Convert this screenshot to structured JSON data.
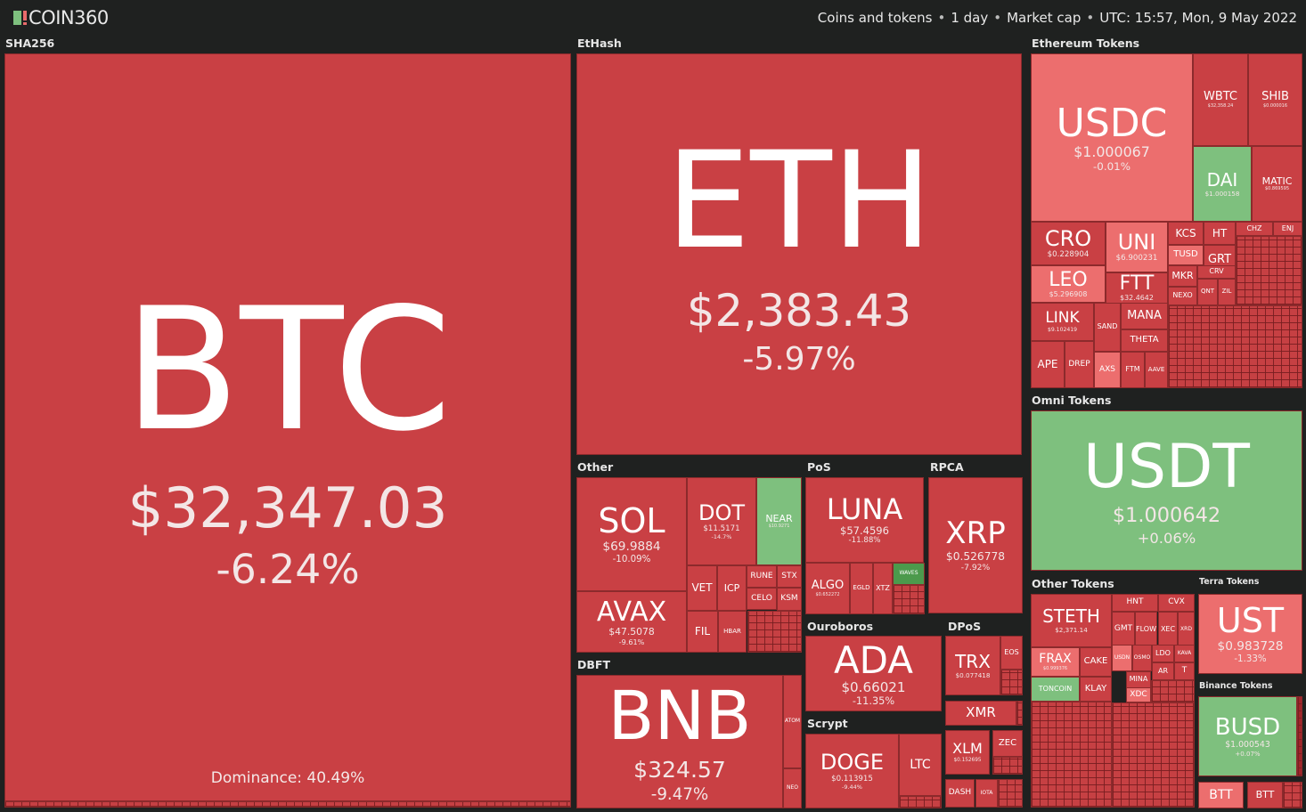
{
  "header": {
    "logo": "COIN360",
    "filters": [
      "Coins and tokens",
      "1 day",
      "Market cap",
      "UTC: 15:57, Mon, 9 May 2022"
    ]
  },
  "colors": {
    "red": "#c94044",
    "light_red": "#ec6e6e",
    "green": "#7ec07e",
    "dark_green": "#4c9a4c",
    "background": "#1f2120"
  },
  "groups": [
    "SHA256",
    "EtHash",
    "Ethereum Tokens",
    "Omni Tokens",
    "Other",
    "PoS",
    "RPCA",
    "Ouroboros",
    "DPoS",
    "DBFT",
    "Scrypt",
    "Other Tokens",
    "Terra Tokens",
    "Binance Tokens"
  ],
  "dominance": "Dominance: 40.49%",
  "tiles": [
    {
      "sym": "BTC",
      "price": "$32,347.03",
      "change": "-6.24%",
      "color": "red"
    },
    {
      "sym": "ETH",
      "price": "$2,383.43",
      "change": "-5.97%",
      "color": "red"
    },
    {
      "sym": "USDC",
      "price": "$1.000067",
      "change": "-0.01%",
      "color": "light_red"
    },
    {
      "sym": "WBTC",
      "price": "$32,358.24",
      "change": "",
      "color": "red"
    },
    {
      "sym": "SHIB",
      "price": "$0.000016",
      "change": "",
      "color": "red"
    },
    {
      "sym": "DAI",
      "price": "$1.000158",
      "change": "",
      "color": "green"
    },
    {
      "sym": "MATIC",
      "price": "$0.869595",
      "change": "",
      "color": "red"
    },
    {
      "sym": "CRO",
      "price": "$0.228904",
      "change": "",
      "color": "red"
    },
    {
      "sym": "UNI",
      "price": "$6.900231",
      "change": "",
      "color": "light_red"
    },
    {
      "sym": "LEO",
      "price": "$5.296908",
      "change": "",
      "color": "light_red"
    },
    {
      "sym": "FTT",
      "price": "$32.4642",
      "change": "",
      "color": "red"
    },
    {
      "sym": "LINK",
      "price": "$9.102419",
      "change": "",
      "color": "red"
    },
    {
      "sym": "APE",
      "price": "",
      "change": "",
      "color": "red"
    },
    {
      "sym": "DREP",
      "price": "",
      "change": "",
      "color": "red"
    },
    {
      "sym": "SAND",
      "price": "",
      "change": "",
      "color": "red"
    },
    {
      "sym": "MANA",
      "price": "",
      "change": "",
      "color": "red"
    },
    {
      "sym": "THETA",
      "price": "",
      "change": "",
      "color": "red"
    },
    {
      "sym": "AXS",
      "price": "",
      "change": "",
      "color": "light_red"
    },
    {
      "sym": "FTM",
      "price": "",
      "change": "",
      "color": "red"
    },
    {
      "sym": "AAVE",
      "price": "",
      "change": "",
      "color": "red"
    },
    {
      "sym": "KCS",
      "price": "",
      "change": "",
      "color": "red"
    },
    {
      "sym": "HT",
      "price": "",
      "change": "",
      "color": "red"
    },
    {
      "sym": "TUSD",
      "price": "",
      "change": "",
      "color": "light_red"
    },
    {
      "sym": "GRT",
      "price": "",
      "change": "",
      "color": "red"
    },
    {
      "sym": "MKR",
      "price": "",
      "change": "",
      "color": "red"
    },
    {
      "sym": "CRV",
      "price": "",
      "change": "",
      "color": "red"
    },
    {
      "sym": "NEXO",
      "price": "",
      "change": "",
      "color": "red"
    },
    {
      "sym": "QNT",
      "price": "",
      "change": "",
      "color": "red"
    },
    {
      "sym": "ZIL",
      "price": "",
      "change": "",
      "color": "red"
    },
    {
      "sym": "CHZ",
      "price": "",
      "change": "",
      "color": "red"
    },
    {
      "sym": "ENJ",
      "price": "",
      "change": "",
      "color": "red"
    },
    {
      "sym": "USDT",
      "price": "$1.000642",
      "change": "+0.06%",
      "color": "green"
    },
    {
      "sym": "SOL",
      "price": "$69.9884",
      "change": "-10.09%",
      "color": "red"
    },
    {
      "sym": "DOT",
      "price": "$11.5171",
      "change": "-14.7%",
      "color": "red"
    },
    {
      "sym": "NEAR",
      "price": "$10.9271",
      "change": "",
      "color": "green"
    },
    {
      "sym": "AVAX",
      "price": "$47.5078",
      "change": "-9.61%",
      "color": "red"
    },
    {
      "sym": "VET",
      "price": "",
      "change": "",
      "color": "red"
    },
    {
      "sym": "ICP",
      "price": "",
      "change": "",
      "color": "red"
    },
    {
      "sym": "RUNE",
      "price": "",
      "change": "",
      "color": "red"
    },
    {
      "sym": "STX",
      "price": "",
      "change": "",
      "color": "red"
    },
    {
      "sym": "CELO",
      "price": "",
      "change": "",
      "color": "red"
    },
    {
      "sym": "KSM",
      "price": "",
      "change": "",
      "color": "red"
    },
    {
      "sym": "FIL",
      "price": "",
      "change": "",
      "color": "red"
    },
    {
      "sym": "HBAR",
      "price": "",
      "change": "",
      "color": "red"
    },
    {
      "sym": "LUNA",
      "price": "$57.4596",
      "change": "-11.88%",
      "color": "red"
    },
    {
      "sym": "ALGO",
      "price": "$0.652272",
      "change": "",
      "color": "red"
    },
    {
      "sym": "EGLD",
      "price": "",
      "change": "",
      "color": "red"
    },
    {
      "sym": "XTZ",
      "price": "",
      "change": "",
      "color": "red"
    },
    {
      "sym": "WAVES",
      "price": "",
      "change": "",
      "color": "dark_green"
    },
    {
      "sym": "XRP",
      "price": "$0.526778",
      "change": "-7.92%",
      "color": "red"
    },
    {
      "sym": "ADA",
      "price": "$0.66021",
      "change": "-11.35%",
      "color": "red"
    },
    {
      "sym": "DOGE",
      "price": "$0.113915",
      "change": "-9.44%",
      "color": "red"
    },
    {
      "sym": "LTC",
      "price": "",
      "change": "",
      "color": "red"
    },
    {
      "sym": "TRX",
      "price": "$0.077418",
      "change": "",
      "color": "red"
    },
    {
      "sym": "EOS",
      "price": "",
      "change": "",
      "color": "red"
    },
    {
      "sym": "XMR",
      "price": "",
      "change": "",
      "color": "red"
    },
    {
      "sym": "XLM",
      "price": "$0.152695",
      "change": "",
      "color": "red"
    },
    {
      "sym": "ZEC",
      "price": "",
      "change": "",
      "color": "red"
    },
    {
      "sym": "DASH",
      "price": "",
      "change": "",
      "color": "red"
    },
    {
      "sym": "IOTA",
      "price": "",
      "change": "",
      "color": "red"
    },
    {
      "sym": "BNB",
      "price": "$324.57",
      "change": "-9.47%",
      "color": "red"
    },
    {
      "sym": "ATOM",
      "price": "",
      "change": "",
      "color": "red"
    },
    {
      "sym": "NEO",
      "price": "",
      "change": "",
      "color": "red"
    },
    {
      "sym": "STETH",
      "price": "$2,371.14",
      "change": "",
      "color": "red"
    },
    {
      "sym": "FRAX",
      "price": "$0.999376",
      "change": "",
      "color": "light_red"
    },
    {
      "sym": "CAKE",
      "price": "",
      "change": "",
      "color": "red"
    },
    {
      "sym": "TONCOIN",
      "price": "",
      "change": "",
      "color": "green"
    },
    {
      "sym": "KLAY",
      "price": "",
      "change": "",
      "color": "red"
    },
    {
      "sym": "HNT",
      "price": "",
      "change": "",
      "color": "red"
    },
    {
      "sym": "CVX",
      "price": "",
      "change": "",
      "color": "red"
    },
    {
      "sym": "GMT",
      "price": "",
      "change": "",
      "color": "red"
    },
    {
      "sym": "FLOW",
      "price": "",
      "change": "",
      "color": "red"
    },
    {
      "sym": "XEC",
      "price": "",
      "change": "",
      "color": "red"
    },
    {
      "sym": "XRD",
      "price": "",
      "change": "",
      "color": "red"
    },
    {
      "sym": "USDN",
      "price": "",
      "change": "",
      "color": "light_red"
    },
    {
      "sym": "OSMO",
      "price": "",
      "change": "",
      "color": "red"
    },
    {
      "sym": "LDO",
      "price": "",
      "change": "",
      "color": "red"
    },
    {
      "sym": "KAVA",
      "price": "",
      "change": "",
      "color": "red"
    },
    {
      "sym": "AR",
      "price": "",
      "change": "",
      "color": "red"
    },
    {
      "sym": "T",
      "price": "",
      "change": "",
      "color": "red"
    },
    {
      "sym": "MINA",
      "price": "",
      "change": "",
      "color": "red"
    },
    {
      "sym": "XDC",
      "price": "",
      "change": "",
      "color": "light_red"
    },
    {
      "sym": "UST",
      "price": "$0.983728",
      "change": "-1.33%",
      "color": "light_red"
    },
    {
      "sym": "BUSD",
      "price": "$1.000543",
      "change": "+0.07%",
      "color": "green"
    },
    {
      "sym": "BTT",
      "price": "",
      "change": "",
      "color": "light_red"
    },
    {
      "sym": "BTT",
      "price": "",
      "change": "",
      "color": "red"
    }
  ]
}
